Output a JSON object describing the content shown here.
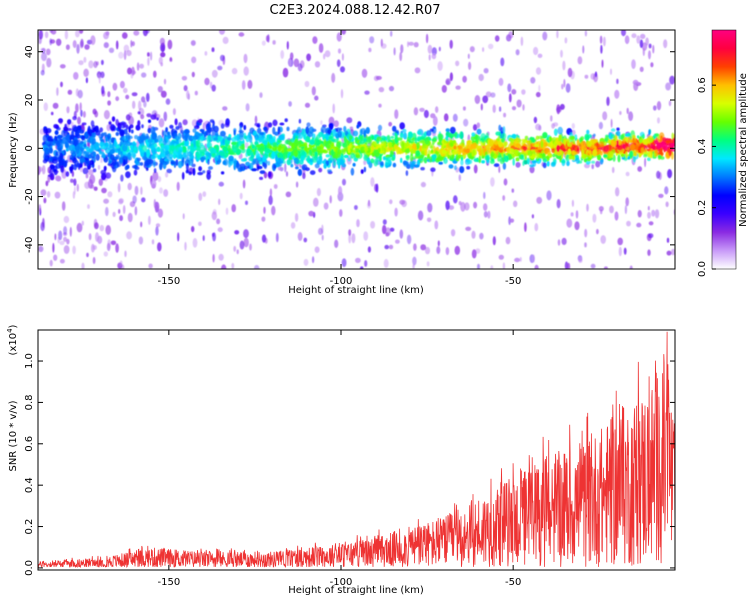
{
  "title": "C2E3.2024.088.12.42.R07",
  "chart_data": [
    {
      "type": "heatmap",
      "xlabel": "Height of straight line (km)",
      "ylabel": "Frequency (Hz)",
      "xlim": [
        -188,
        -3
      ],
      "ylim": [
        -50,
        49
      ],
      "xticks": [
        -150,
        -100,
        -50
      ],
      "yticks": [
        -40,
        -20,
        0,
        20,
        40
      ],
      "colorbar": {
        "label": "Normalized spectral amplitude",
        "range": [
          0,
          0.78
        ],
        "ticks": [
          0.0,
          0.2,
          0.4,
          0.6
        ],
        "colors": [
          "#ffffff",
          "#c89af8",
          "#8a2be2",
          "#3a00ff",
          "#0000ff",
          "#0078ff",
          "#00e8ff",
          "#00ff80",
          "#66ff00",
          "#d8ff00",
          "#ffc000",
          "#ff4000",
          "#ff0040",
          "#ff0080"
        ]
      },
      "description_points": {
        "note": "",
        "center_band_hz": 0,
        "band_halfwidth_hz": [
          12,
          5
        ]
      }
    },
    {
      "type": "line",
      "xlabel": "Height of straight line (km)",
      "ylabel": "SNR (10 * v/v)",
      "yscale_label": "(x10",
      "yscale_exp": "4",
      "yscale_close": ")",
      "xlim": [
        -188,
        -3
      ],
      "ylim": [
        -0.01,
        1.15
      ],
      "xticks": [
        -150,
        -100,
        -50
      ],
      "yticks": [
        0.0,
        0.2,
        0.4,
        0.6,
        0.8,
        1.0
      ],
      "series": [
        {
          "color": "#ee3333",
          "envelope": [
            [
              -188,
              0.03
            ],
            [
              -170,
              0.05
            ],
            [
              -155,
              0.1
            ],
            [
              -140,
              0.08
            ],
            [
              -120,
              0.08
            ],
            [
              -100,
              0.12
            ],
            [
              -90,
              0.15
            ],
            [
              -80,
              0.2
            ],
            [
              -70,
              0.25
            ],
            [
              -60,
              0.35
            ],
            [
              -50,
              0.45
            ],
            [
              -40,
              0.55
            ],
            [
              -30,
              0.6
            ],
            [
              -20,
              0.75
            ],
            [
              -10,
              0.9
            ],
            [
              -5,
              1.1
            ],
            [
              -3,
              0.6
            ]
          ]
        }
      ]
    }
  ]
}
